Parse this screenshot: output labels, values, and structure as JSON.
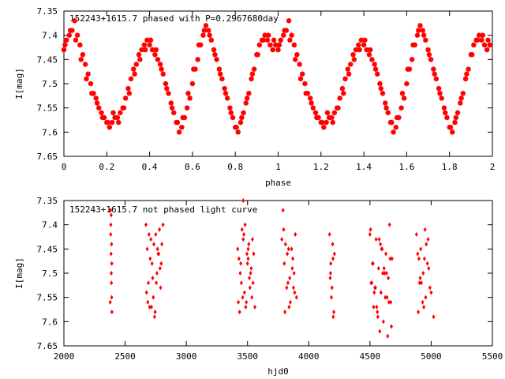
{
  "colors": {
    "marker": "#ff0000",
    "axis": "#000000",
    "background": "#ffffff"
  },
  "chart_data": [
    {
      "type": "scatter",
      "marker": "star",
      "title": "152243+1615.7 phased with P=0.2967680day",
      "xlabel": "phase",
      "ylabel": "I[mag]",
      "xlim": [
        0,
        2
      ],
      "ylim": [
        7.65,
        7.35
      ],
      "y_inverted": true,
      "grid": false,
      "xticks": [
        "0",
        "0.2",
        "0.4",
        "0.6",
        "0.8",
        "1",
        "1.2",
        "1.4",
        "1.6",
        "1.8",
        "2"
      ],
      "yticks": [
        "7.35",
        "7.4",
        "7.45",
        "7.5",
        "7.55",
        "7.6",
        "7.65"
      ],
      "series": [
        {
          "x": [
            0.0,
            0.012,
            0.025,
            0.038,
            0.05,
            0.063,
            0.075,
            0.088,
            0.1,
            0.113,
            0.125,
            0.138,
            0.15,
            0.163,
            0.175,
            0.188,
            0.2,
            0.213,
            0.225,
            0.238,
            0.25,
            0.263,
            0.275,
            0.288,
            0.3,
            0.313,
            0.325,
            0.338,
            0.35,
            0.363,
            0.375,
            0.388,
            0.4,
            0.413,
            0.425,
            0.438,
            0.45,
            0.463,
            0.475,
            0.488,
            0.5,
            0.513,
            0.525,
            0.538,
            0.55,
            0.563,
            0.575,
            0.588,
            0.6,
            0.613,
            0.625,
            0.638,
            0.65,
            0.663,
            0.675,
            0.688,
            0.7,
            0.713,
            0.725,
            0.738,
            0.75,
            0.763,
            0.775,
            0.788,
            0.8,
            0.813,
            0.825,
            0.838,
            0.85,
            0.863,
            0.875,
            0.888,
            0.9,
            0.913,
            0.925,
            0.938,
            0.95,
            0.963,
            0.975,
            0.988,
            0.005,
            0.03,
            0.055,
            0.08,
            0.105,
            0.13,
            0.155,
            0.18,
            0.205,
            0.23,
            0.255,
            0.28,
            0.305,
            0.33,
            0.355,
            0.38,
            0.405,
            0.43,
            0.455,
            0.48,
            0.505,
            0.53,
            0.555,
            0.58,
            0.605,
            0.63,
            0.655,
            0.68,
            0.705,
            0.73,
            0.755,
            0.78,
            0.805,
            0.83,
            0.855,
            0.88,
            0.905,
            0.93,
            0.955,
            0.98
          ],
          "y": [
            7.43,
            7.41,
            7.4,
            7.39,
            7.37,
            7.4,
            7.42,
            7.44,
            7.46,
            7.48,
            7.5,
            7.52,
            7.53,
            7.55,
            7.56,
            7.57,
            7.58,
            7.59,
            7.58,
            7.57,
            7.57,
            7.56,
            7.55,
            7.53,
            7.51,
            7.49,
            7.47,
            7.46,
            7.44,
            7.43,
            7.42,
            7.41,
            7.42,
            7.43,
            7.44,
            7.45,
            7.46,
            7.48,
            7.5,
            7.52,
            7.54,
            7.56,
            7.58,
            7.6,
            7.59,
            7.57,
            7.55,
            7.53,
            7.5,
            7.47,
            7.45,
            7.42,
            7.4,
            7.38,
            7.39,
            7.41,
            7.43,
            7.45,
            7.47,
            7.49,
            7.51,
            7.53,
            7.55,
            7.57,
            7.59,
            7.6,
            7.58,
            7.56,
            7.54,
            7.52,
            7.49,
            7.47,
            7.44,
            7.42,
            7.41,
            7.4,
            7.41,
            7.42,
            7.43,
            7.42,
            7.42,
            7.39,
            7.41,
            7.45,
            7.49,
            7.52,
            7.54,
            7.57,
            7.58,
            7.56,
            7.58,
            7.55,
            7.52,
            7.48,
            7.45,
            7.43,
            7.41,
            7.43,
            7.47,
            7.51,
            7.55,
            7.58,
            7.57,
            7.52,
            7.47,
            7.42,
            7.39,
            7.4,
            7.44,
            7.48,
            7.52,
            7.56,
            7.59,
            7.57,
            7.53,
            7.48,
            7.44,
            7.41,
            7.4,
            7.41
          ]
        }
      ]
    },
    {
      "type": "scatter",
      "marker": "diamond",
      "title": "152243+1615.7 not phased light curve",
      "xlabel": "hjd0",
      "ylabel": "I[mag]",
      "xlim": [
        2000,
        5500
      ],
      "ylim": [
        7.65,
        7.35
      ],
      "y_inverted": true,
      "grid": false,
      "xticks": [
        "2000",
        "2500",
        "3000",
        "3500",
        "4000",
        "4500",
        "5000",
        "5500"
      ],
      "yticks": [
        "7.35",
        "7.4",
        "7.45",
        "7.5",
        "7.55",
        "7.6",
        "7.65"
      ],
      "series": [
        {
          "x": [
            2380,
            2382,
            2385,
            2387,
            2390,
            2392,
            2378,
            2383,
            2388,
            2391,
            2389,
            2386,
            2670,
            2680,
            2690,
            2700,
            2710,
            2720,
            2730,
            2740,
            2750,
            2760,
            2770,
            2780,
            2790,
            2800,
            2810,
            2685,
            2705,
            2725,
            2745,
            2765,
            2785,
            2675,
            2695,
            2715,
            2735,
            2755,
            2775,
            2795,
            3420,
            3440,
            3460,
            3480,
            3500,
            3520,
            3540,
            3560,
            3430,
            3450,
            3470,
            3490,
            3510,
            3530,
            3550,
            3435,
            3455,
            3475,
            3495,
            3515,
            3535,
            3445,
            3465,
            3485,
            3505,
            3525,
            3545,
            3425,
            3465,
            3505,
            3780,
            3800,
            3820,
            3840,
            3860,
            3880,
            3900,
            3790,
            3810,
            3830,
            3850,
            3870,
            3890,
            3805,
            3825,
            3845,
            3865,
            3885,
            3795,
            3835,
            3875,
            4170,
            4180,
            4190,
            4200,
            4210,
            4175,
            4185,
            4195,
            4205,
            4178,
            4198,
            4500,
            4520,
            4540,
            4560,
            4580,
            4600,
            4620,
            4640,
            4660,
            4680,
            4510,
            4530,
            4550,
            4570,
            4590,
            4610,
            4630,
            4650,
            4670,
            4505,
            4525,
            4545,
            4565,
            4585,
            4605,
            4625,
            4645,
            4665,
            4515,
            4555,
            4595,
            4635,
            4675,
            4535,
            4575,
            4615,
            4655,
            4880,
            4900,
            4920,
            4940,
            4960,
            4980,
            5000,
            5020,
            4890,
            4910,
            4930,
            4950,
            4970,
            4990,
            4895,
            4915,
            4935,
            4955,
            4975,
            4905,
            4945
          ],
          "y": [
            7.37,
            7.42,
            7.46,
            7.5,
            7.55,
            7.58,
            7.56,
            7.4,
            7.52,
            7.48,
            7.44,
            7.38,
            7.4,
            7.45,
            7.52,
            7.57,
            7.43,
            7.48,
            7.55,
            7.59,
            7.42,
            7.5,
            7.46,
            7.41,
            7.53,
            7.44,
            7.4,
            7.56,
            7.47,
            7.51,
            7.58,
            7.45,
            7.49,
            7.54,
            7.42,
            7.57,
            7.44,
            7.52,
            7.46,
            7.48,
            7.45,
            7.5,
            7.55,
            7.4,
            7.48,
            7.53,
            7.43,
            7.57,
            7.47,
            7.52,
            7.42,
            7.56,
            7.44,
            7.49,
            7.46,
            7.58,
            7.41,
            7.54,
            7.46,
            7.51,
            7.55,
            7.48,
            7.43,
            7.57,
            7.45,
            7.5,
            7.52,
            7.56,
            7.35,
            7.47,
            7.43,
            7.48,
            7.53,
            7.57,
            7.45,
            7.5,
            7.55,
            7.37,
            7.44,
            7.52,
            7.56,
            7.47,
            7.42,
            7.58,
            7.46,
            7.51,
            7.49,
            7.54,
            7.41,
            7.45,
            7.53,
            7.42,
            7.48,
            7.53,
            7.59,
            7.46,
            7.51,
            7.55,
            7.44,
            7.58,
            7.5,
            7.47,
            7.42,
            7.48,
            7.53,
            7.58,
            7.62,
            7.45,
            7.5,
            7.55,
            7.4,
            7.47,
            7.52,
            7.57,
            7.43,
            7.49,
            7.54,
            7.6,
            7.46,
            7.51,
            7.56,
            7.41,
            7.48,
            7.53,
            7.59,
            7.44,
            7.5,
            7.55,
            7.63,
            7.47,
            7.52,
            7.57,
            7.45,
            7.5,
            7.61,
            7.54,
            7.43,
            7.49,
            7.56,
            7.42,
            7.47,
            7.52,
            7.57,
            7.44,
            7.49,
            7.54,
            7.59,
            7.46,
            7.51,
            7.56,
            7.41,
            7.48,
            7.53,
            7.58,
            7.45,
            7.5,
            7.55,
            7.43,
            7.52,
            7.47
          ]
        }
      ]
    }
  ]
}
